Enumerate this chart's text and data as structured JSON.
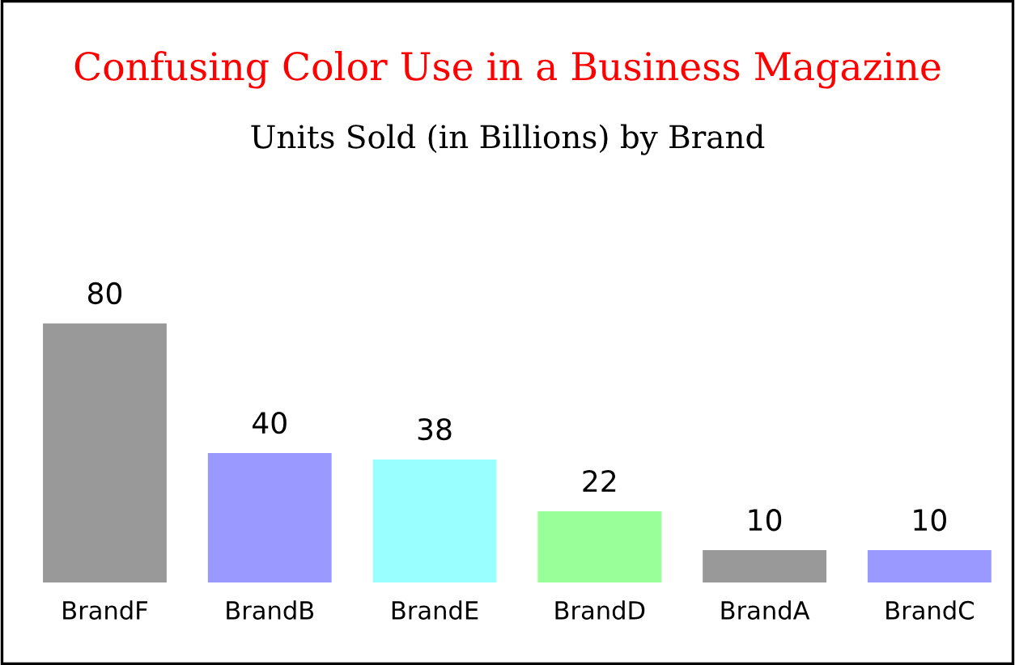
{
  "chart_data": {
    "type": "bar",
    "title": "Confusing Color Use in a Business Magazine",
    "subtitle": "Units Sold (in Billions) by Brand",
    "categories": [
      "BrandF",
      "BrandB",
      "BrandE",
      "BrandD",
      "BrandA",
      "BrandC"
    ],
    "values": [
      80,
      40,
      38,
      22,
      10,
      10
    ],
    "colors": [
      "#999999",
      "#9999ff",
      "#99ffff",
      "#99ff99",
      "#999999",
      "#9999ff"
    ],
    "data_labels": true,
    "grid": false,
    "legend": false
  }
}
